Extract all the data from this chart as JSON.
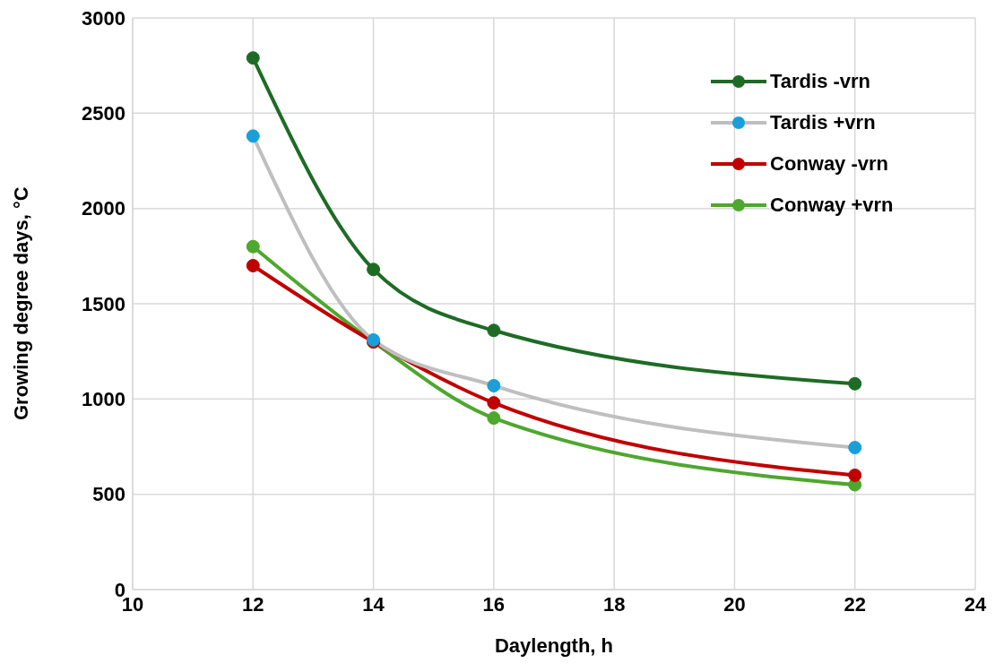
{
  "chart_data": {
    "type": "line",
    "xlabel": "Daylength, h",
    "ylabel": "Growing degree days, °C",
    "x": [
      12,
      14,
      16,
      22
    ],
    "series": [
      {
        "name": "Tardis -vrn",
        "color": "#1e6b25",
        "values": [
          2790,
          1680,
          1360,
          1080
        ]
      },
      {
        "name": "Tardis +vrn",
        "color": "#bfbfbf",
        "colors": [
          "#1a9fd8",
          "#1a9fd8",
          "#1a9fd8",
          "#1a9fd8"
        ],
        "values": [
          2380,
          1310,
          1070,
          745
        ]
      },
      {
        "name": "Conway -vrn",
        "color": "#c00000",
        "values": [
          1700,
          1300,
          980,
          600
        ]
      },
      {
        "name": "Conway +vrn",
        "color": "#4ea72e",
        "values": [
          1800,
          1300,
          900,
          550
        ]
      }
    ],
    "xlim": [
      10,
      24
    ],
    "xticks": [
      10,
      12,
      14,
      16,
      18,
      20,
      22,
      24
    ],
    "ylim": [
      0,
      3000
    ],
    "yticks": [
      0,
      500,
      1000,
      1500,
      2000,
      2500,
      3000
    ],
    "grid": true,
    "legend": "top right",
    "marker": "circle",
    "line_style": "solid"
  }
}
